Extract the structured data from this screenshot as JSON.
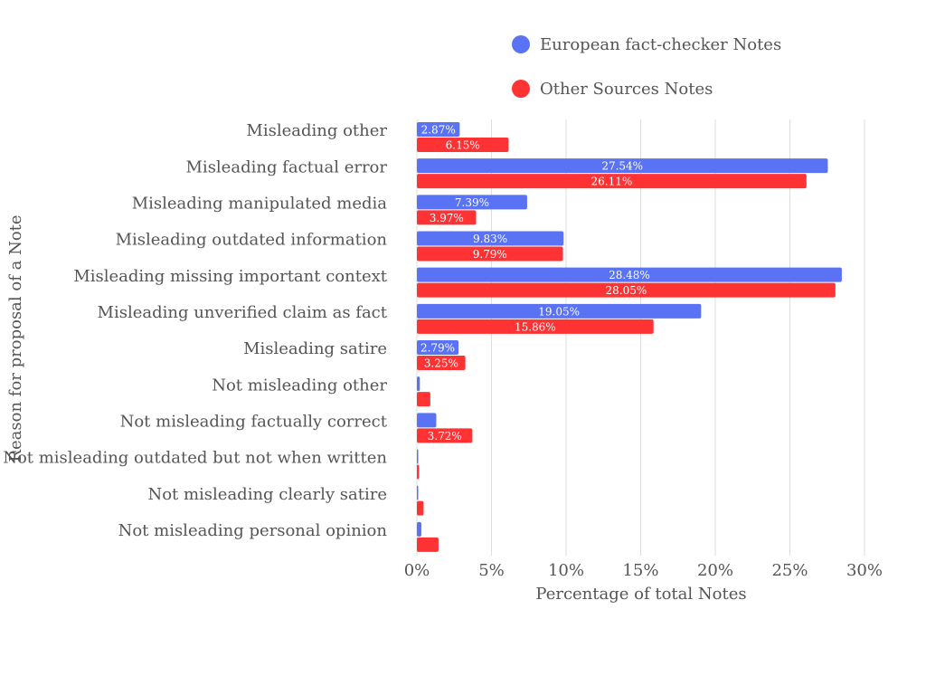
{
  "chart_data": {
    "type": "bar",
    "orientation": "horizontal",
    "xlabel": "Percentage of total Notes",
    "ylabel": "Reason for proposal of a Note",
    "xlim": [
      0,
      30
    ],
    "x_ticks": [
      0,
      5,
      10,
      15,
      20,
      25,
      30
    ],
    "x_tick_labels": [
      "0%",
      "5%",
      "10%",
      "15%",
      "20%",
      "25%",
      "30%"
    ],
    "grid": "vertical",
    "legend_position": "top-right",
    "categories": [
      "Misleading other",
      "Misleading factual error",
      "Misleading manipulated media",
      "Misleading outdated information",
      "Misleading missing important context",
      "Misleading unverified claim as fact",
      "Misleading satire",
      "Not misleading other",
      "Not misleading factually correct",
      "Not misleading outdated but not when written",
      "Not misleading clearly satire",
      "Not misleading personal opinion"
    ],
    "series": [
      {
        "name": "European fact-checker Notes",
        "color": "#5a73f5",
        "values": [
          2.87,
          27.54,
          7.39,
          9.83,
          28.48,
          19.05,
          2.79,
          0.2,
          1.3,
          0.05,
          0.05,
          0.3
        ],
        "data_labels": [
          "2.87%",
          "27.54%",
          "7.39%",
          "9.83%",
          "28.48%",
          "19.05%",
          "2.79%",
          "",
          "",
          "",
          "",
          ""
        ]
      },
      {
        "name": "Other Sources Notes",
        "color": "#ff3333",
        "values": [
          6.15,
          26.11,
          3.97,
          9.79,
          28.05,
          15.86,
          3.25,
          0.9,
          3.72,
          0.15,
          0.45,
          1.45
        ],
        "data_labels": [
          "6.15%",
          "26.11%",
          "3.97%",
          "9.79%",
          "28.05%",
          "15.86%",
          "3.25%",
          "",
          "3.72%",
          "",
          "",
          ""
        ]
      }
    ]
  }
}
